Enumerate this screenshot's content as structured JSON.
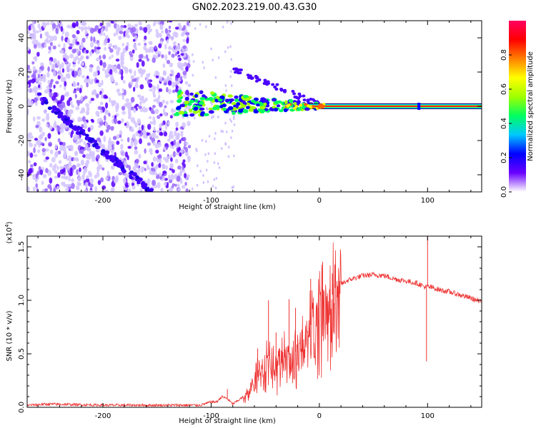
{
  "figure": {
    "title": "GN02.2023.219.00.43.G30"
  },
  "chart_data": [
    {
      "type": "heatmap",
      "title": "GN02.2023.219.00.43.G30",
      "xlabel": "Height of straight line (km)",
      "ylabel": "Frequency (Hz)",
      "xlim": [
        -270,
        150
      ],
      "ylim": [
        -50,
        50
      ],
      "xticks": [
        -200,
        -100,
        0,
        100
      ],
      "yticks": [
        -40,
        -20,
        0,
        20,
        40
      ],
      "colorbar": {
        "label": "Normalized spectral amplitude",
        "range": [
          0,
          1
        ],
        "ticks": [
          0.0,
          0.2,
          0.4,
          0.6,
          0.8
        ],
        "colormap": [
          "#ffffff",
          "#6a00ff",
          "#0000ff",
          "#00c8ff",
          "#00ff60",
          "#a0ff00",
          "#ffff00",
          "#ff8000",
          "#ff0000",
          "#ff0060"
        ]
      },
      "features": {
        "carrier_band_start_x": 0,
        "carrier_band_end_x": 150,
        "carrier_frequency": 0,
        "descending_branch": {
          "x": [
            -260,
            -155
          ],
          "y": [
            6,
            -50
          ]
        },
        "converging_branch": {
          "x": [
            -80,
            0
          ],
          "y": [
            22,
            1
          ]
        },
        "noise_region_end_x": -120
      }
    },
    {
      "type": "line",
      "xlabel": "Height of straight line (km)",
      "ylabel": "SNR (10 * v/v)",
      "y_scale_label": "(x10",
      "y_scale_exp": "4",
      "xlim": [
        -270,
        150
      ],
      "ylim": [
        0,
        1.6
      ],
      "xticks": [
        -200,
        -100,
        0,
        100
      ],
      "yticks": [
        0.0,
        0.5,
        1.0,
        1.5
      ],
      "color": "#ee3333",
      "series": [
        {
          "x": [
            -270,
            -250,
            -200,
            -150,
            -110,
            -100,
            -95,
            -90,
            -85,
            -80,
            -70,
            -60,
            -55,
            -50,
            -45,
            -40,
            -35,
            -30,
            -25,
            -20,
            -15,
            -10,
            -5,
            0,
            5,
            10,
            15,
            20,
            25,
            30,
            40,
            50,
            60,
            70,
            80,
            90,
            95,
            98,
            100,
            102,
            105,
            110,
            120,
            130,
            140,
            150
          ],
          "y": [
            0.02,
            0.03,
            0.02,
            0.02,
            0.02,
            0.05,
            0.05,
            0.1,
            0.08,
            0.03,
            0.1,
            0.25,
            0.4,
            0.45,
            0.5,
            0.35,
            0.45,
            0.55,
            0.4,
            0.6,
            0.65,
            0.75,
            0.8,
            0.9,
            0.95,
            1.02,
            1.1,
            1.15,
            1.18,
            1.2,
            1.23,
            1.24,
            1.23,
            1.2,
            1.18,
            1.16,
            1.14,
            1.12,
            1.13,
            1.12,
            1.12,
            1.1,
            1.08,
            1.05,
            1.02,
            0.98
          ]
        }
      ],
      "spikes": [
        {
          "x": -85,
          "y": 0.17
        },
        {
          "x": -57,
          "y": 0.55
        },
        {
          "x": -47,
          "y": 1.0
        },
        {
          "x": -40,
          "y": 0.7
        },
        {
          "x": -28,
          "y": 1.01
        },
        {
          "x": -22,
          "y": 0.93
        },
        {
          "x": -8,
          "y": 1.2
        },
        {
          "x": 3,
          "y": 1.36
        },
        {
          "x": 12,
          "y": 1.25
        },
        {
          "x": 100,
          "y": 1.6
        },
        {
          "x": 99,
          "y": 0.43
        }
      ]
    }
  ]
}
